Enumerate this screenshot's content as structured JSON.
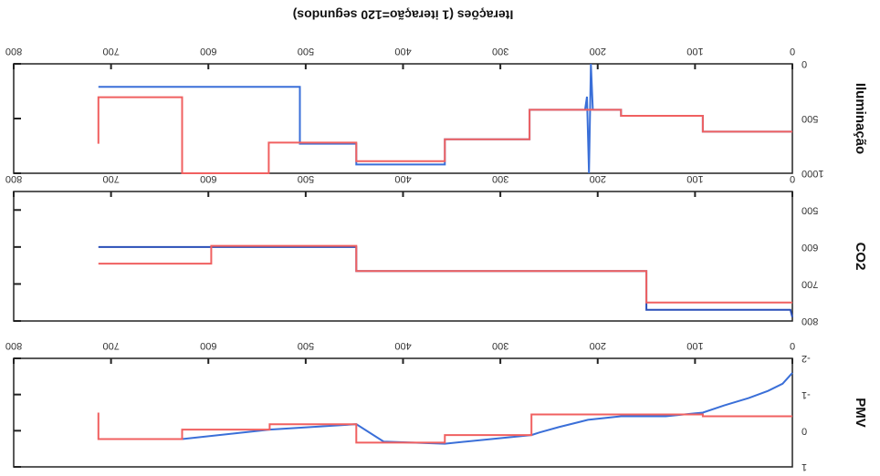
{
  "chart_data": [
    {
      "type": "line",
      "ylabel": "PMV",
      "xlim": [
        0,
        800
      ],
      "xticks": [
        0,
        100,
        200,
        300,
        400,
        500,
        600,
        700,
        800
      ],
      "ylim": [
        -2,
        1
      ],
      "yticks": [
        -2,
        -1,
        0,
        1
      ],
      "series": [
        {
          "color": "#3a6fd8",
          "x": [
            0,
            10,
            25,
            45,
            70,
            92,
            130,
            176,
            210,
            240,
            260,
            268,
            357,
            380,
            420,
            448,
            537,
            627,
            713
          ],
          "values": [
            -1.6,
            -1.3,
            -1.1,
            -0.9,
            -0.7,
            -0.5,
            -0.4,
            -0.4,
            -0.3,
            -0.1,
            0.05,
            0.12,
            0.36,
            0.34,
            0.3,
            -0.18,
            -0.03,
            0.23,
            0.23
          ]
        },
        {
          "color": "#f06060",
          "x": [
            0,
            92,
            92,
            268,
            268,
            357,
            357,
            448,
            448,
            537,
            537,
            627,
            627,
            713,
            713
          ],
          "values": [
            -0.4,
            -0.4,
            -0.45,
            -0.45,
            0.12,
            0.12,
            0.33,
            0.33,
            -0.18,
            -0.18,
            -0.03,
            -0.03,
            0.23,
            0.23,
            -0.5
          ]
        }
      ]
    },
    {
      "type": "line",
      "ylabel": "CO2",
      "xlim": [
        0,
        800
      ],
      "xticks": [
        0,
        100,
        200,
        300,
        400,
        500,
        600,
        700,
        800
      ],
      "ylim": [
        450,
        800
      ],
      "yticks": [
        500,
        600,
        700,
        800
      ],
      "series": [
        {
          "color": "#2a4fb8",
          "x": [
            0,
            2,
            150,
            150,
            448,
            448,
            713
          ],
          "values": [
            790,
            770,
            770,
            665,
            665,
            600,
            600
          ]
        },
        {
          "color": "#f06060",
          "x": [
            0,
            150,
            150,
            448,
            448,
            597,
            597,
            713
          ],
          "values": [
            750,
            750,
            665,
            665,
            597,
            597,
            645,
            645
          ]
        }
      ]
    },
    {
      "type": "line",
      "ylabel": "Iluminação",
      "xlabel": "Iterações (1 iteração=120 segundos)",
      "xlim": [
        0,
        800
      ],
      "xticks": [
        0,
        100,
        200,
        300,
        400,
        500,
        600,
        700,
        800
      ],
      "ylim": [
        0,
        1000
      ],
      "yticks": [
        0,
        500,
        1000
      ],
      "series": [
        {
          "color": "#3a6fd8",
          "x": [
            0,
            92,
            92,
            176,
            176,
            205,
            207,
            209,
            211,
            213,
            270,
            270,
            357,
            357,
            448,
            448,
            506,
            506,
            713
          ],
          "values": [
            620,
            620,
            475,
            475,
            420,
            420,
            0,
            1000,
            300,
            420,
            420,
            690,
            690,
            920,
            920,
            730,
            730,
            210,
            210
          ]
        },
        {
          "color": "#f06060",
          "x": [
            0,
            92,
            92,
            176,
            176,
            270,
            270,
            357,
            357,
            448,
            448,
            538,
            538,
            627,
            627,
            713,
            713
          ],
          "values": [
            620,
            620,
            475,
            475,
            420,
            420,
            690,
            690,
            890,
            890,
            720,
            720,
            1000,
            1000,
            305,
            305,
            730
          ]
        }
      ]
    }
  ]
}
